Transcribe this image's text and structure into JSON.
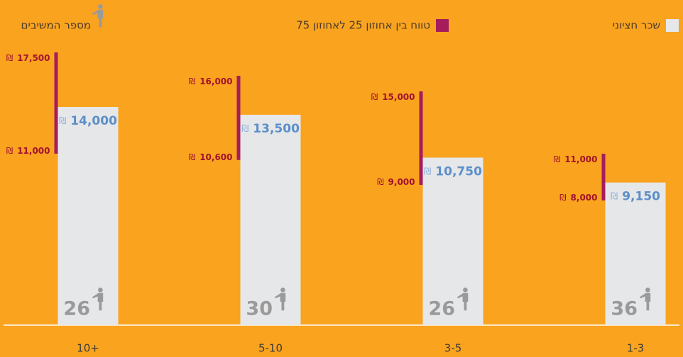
{
  "chart_data": {
    "type": "bar-range",
    "currency": "₪",
    "categories": [
      "1-3",
      "3-5",
      "5-10",
      "10+"
    ],
    "series": [
      {
        "name": "שכר חציוני",
        "color": "#e6e7e8",
        "values": [
          9150,
          10750,
          13500,
          14000
        ],
        "value_labels": [
          "9,150",
          "10,750",
          "13,500",
          "14,000"
        ]
      },
      {
        "name": "טווח בין אחוזון 25 לאחוזון 75",
        "color": "#a51d5c",
        "low": [
          8000,
          9000,
          10600,
          11000
        ],
        "low_labels": [
          "8,000",
          "9,000",
          "10,600",
          "11,000"
        ],
        "high": [
          11000,
          15000,
          16000,
          17500
        ],
        "high_labels": [
          "11,000",
          "15,000",
          "16,000",
          "17,500"
        ]
      },
      {
        "name": "מספר המשיבים",
        "color": "#9a9a9a",
        "values": [
          36,
          26,
          30,
          26
        ]
      }
    ]
  }
}
